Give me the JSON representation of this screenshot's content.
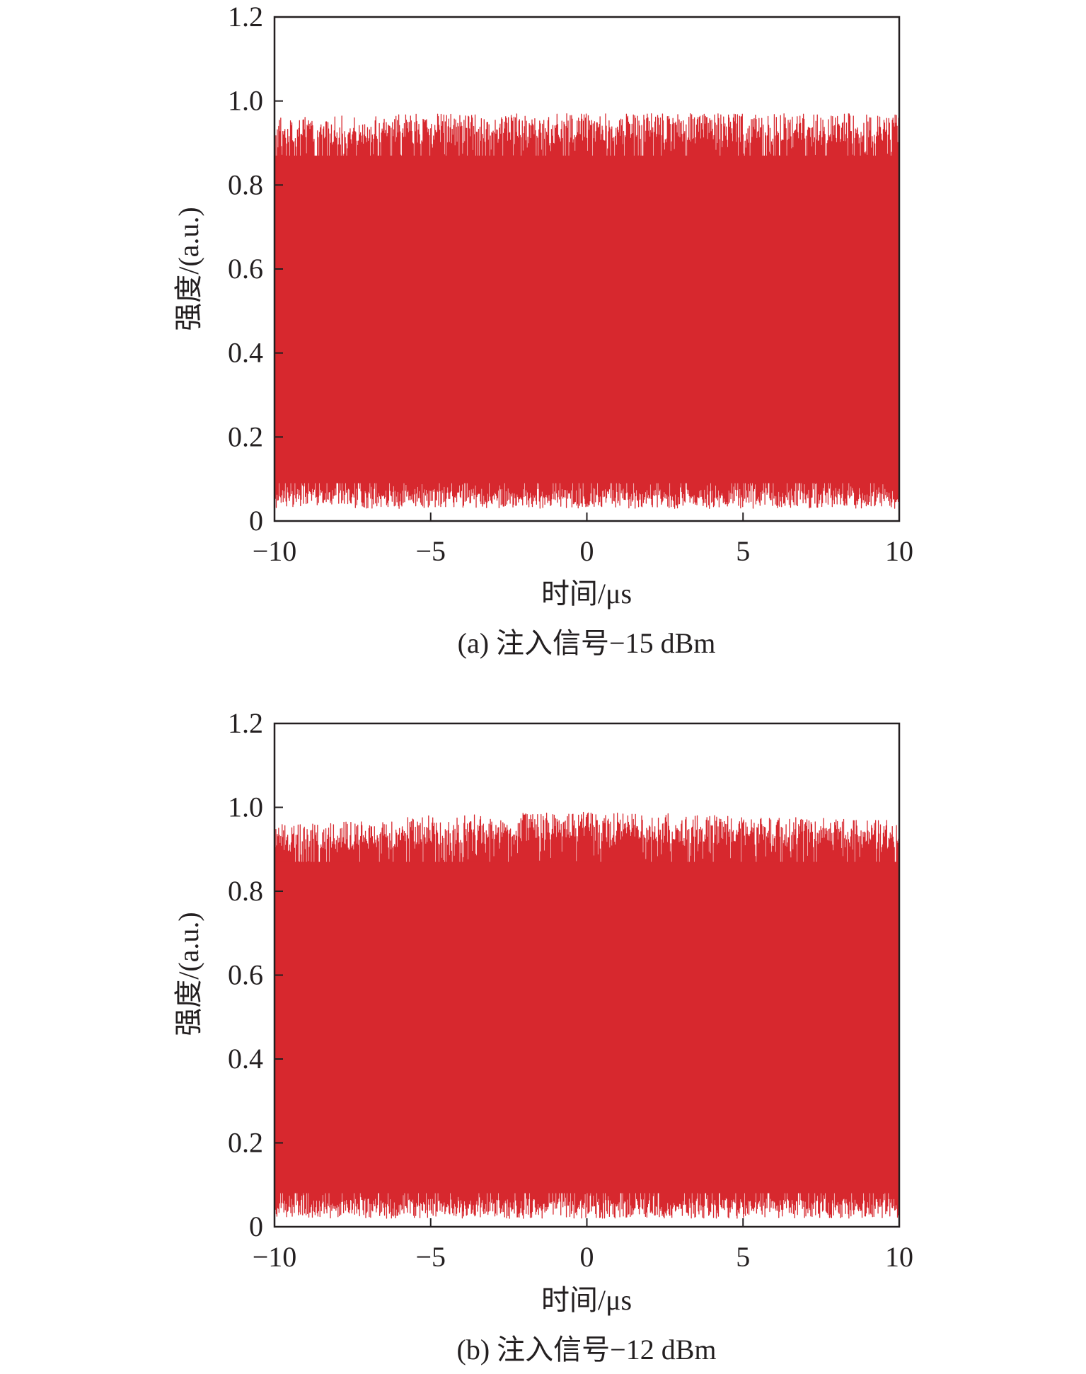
{
  "colors": {
    "signal": "#d7282e",
    "frame": "#231f20",
    "background": "#ffffff"
  },
  "chart_data": [
    {
      "type": "line",
      "caption": "(a) 注入信号−15 dBm",
      "xlabel": "时间/μs",
      "ylabel": "强度/(a.u.)",
      "xlim": [
        -10,
        10
      ],
      "ylim": [
        0,
        1.2
      ],
      "x_ticks": [
        "−10",
        "−5",
        "0",
        "5",
        "10"
      ],
      "y_ticks": [
        "0",
        "0.2",
        "0.4",
        "0.6",
        "0.8",
        "1.0",
        "1.2"
      ],
      "grid": false,
      "series": [
        {
          "description_of_trace": "dense rapidly oscillating intensity trace",
          "envelope_upper_x": [
            -10,
            -5,
            0,
            5,
            10
          ],
          "envelope_upper_y": [
            0.96,
            0.97,
            0.97,
            0.97,
            0.97
          ],
          "envelope_lower_x": [
            -10,
            -5,
            0,
            5,
            10
          ],
          "envelope_lower_y": [
            0.03,
            0.03,
            0.03,
            0.03,
            0.03
          ]
        }
      ]
    },
    {
      "type": "line",
      "caption": "(b) 注入信号−12 dBm",
      "xlabel": "时间/μs",
      "ylabel": "强度/(a.u.)",
      "xlim": [
        -10,
        10
      ],
      "ylim": [
        0,
        1.2
      ],
      "x_ticks": [
        "−10",
        "−5",
        "0",
        "5",
        "10"
      ],
      "y_ticks": [
        "0",
        "0.2",
        "0.4",
        "0.6",
        "0.8",
        "1.0",
        "1.2"
      ],
      "grid": false,
      "series": [
        {
          "description_of_trace": "dense rapidly oscillating intensity trace",
          "envelope_upper_x": [
            -10,
            -5,
            0,
            5,
            10
          ],
          "envelope_upper_y": [
            0.96,
            0.98,
            0.99,
            0.98,
            0.97
          ],
          "envelope_lower_x": [
            -10,
            -5,
            0,
            5,
            10
          ],
          "envelope_lower_y": [
            0.02,
            0.02,
            0.02,
            0.02,
            0.02
          ]
        }
      ]
    }
  ]
}
